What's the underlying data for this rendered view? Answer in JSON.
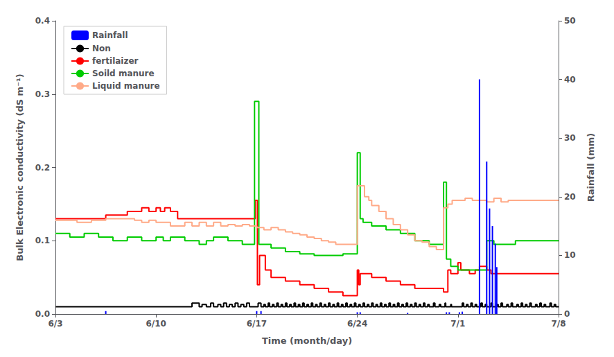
{
  "chart_data": {
    "type": "line",
    "xlabel": "Time (month/day)",
    "ylabel": "Bulk Electronic conductivity (dS m⁻¹)",
    "y2label": "Rainfall (mm)",
    "xlim": [
      0,
      35
    ],
    "xticks": [
      {
        "value": 0,
        "label": "6/3"
      },
      {
        "value": 7,
        "label": "6/10"
      },
      {
        "value": 14,
        "label": "6/17"
      },
      {
        "value": 21,
        "label": "6/24"
      },
      {
        "value": 28,
        "label": "7/1"
      },
      {
        "value": 35,
        "label": "7/8"
      }
    ],
    "ylim": [
      0,
      0.4
    ],
    "yticks": [
      {
        "value": 0,
        "label": "0.0"
      },
      0.1,
      0.2,
      0.3,
      0.4
    ],
    "y2lim": [
      0,
      50
    ],
    "y2ticks": [
      0,
      10,
      20,
      30,
      40,
      50
    ],
    "grid": false,
    "legend": "upper left",
    "series": [
      {
        "name": "Rainfall",
        "type": "bar",
        "axis": "y2",
        "color": "#0000ff",
        "x": [
          3.5,
          14.0,
          14.3,
          21.0,
          21.2,
          24.5,
          27.2,
          27.4,
          28.1,
          28.3,
          29.5,
          30.0,
          30.2,
          30.4,
          30.6,
          30.7
        ],
        "values": [
          0.5,
          0.5,
          0.5,
          0.3,
          0.3,
          0.2,
          0.3,
          0.3,
          0.3,
          0.4,
          40.0,
          26.0,
          18.0,
          15.0,
          12.0,
          8.0
        ]
      },
      {
        "name": "Non",
        "type": "line",
        "line_style": "step",
        "color": "#000000",
        "x": [
          0,
          9.5,
          10.0,
          10.2,
          10.5,
          10.8,
          11.0,
          11.3,
          11.5,
          11.7,
          11.9,
          12.1,
          12.3,
          12.5,
          12.7,
          12.9,
          13.1,
          13.3,
          13.5,
          14.1,
          14.3,
          14.5,
          14.6,
          14.8,
          14.9,
          15.1,
          15.2,
          15.4,
          15.5,
          15.7,
          15.8,
          16.0,
          16.1,
          16.3,
          16.4,
          16.6,
          16.7,
          16.9,
          17.0,
          17.2,
          17.3,
          17.5,
          17.6,
          17.8,
          17.9,
          18.1,
          18.2,
          18.4,
          18.5,
          18.7,
          18.8,
          19.0,
          19.1,
          19.3,
          19.4,
          19.6,
          19.7,
          19.9,
          20.0,
          20.2,
          20.3,
          20.5,
          20.6,
          20.8,
          20.9,
          21.1,
          21.2,
          21.4,
          21.5,
          21.7,
          21.8,
          22.0,
          22.1,
          22.3,
          22.4,
          22.6,
          22.7,
          22.9,
          23.0,
          23.2,
          23.3,
          23.5,
          23.6,
          23.8,
          23.9,
          24.1,
          24.2,
          24.4,
          24.5,
          24.7,
          24.8,
          25.0,
          25.1,
          25.3,
          25.4,
          25.6,
          25.7,
          25.9,
          26.0,
          26.3,
          26.4,
          26.7,
          26.8,
          27.1,
          27.15,
          27.5,
          27.55,
          28.3,
          28.4,
          28.6,
          28.7,
          28.9,
          29.0,
          29.2,
          29.3,
          29.6,
          29.7,
          29.9,
          30.0,
          30.3,
          30.4,
          30.7,
          30.8,
          31.0,
          31.1,
          31.4,
          31.5,
          31.7,
          31.8,
          32.1,
          32.2,
          32.4,
          32.5,
          32.7,
          32.8,
          33.0,
          33.1,
          33.4,
          33.5,
          33.7,
          33.8,
          34.0,
          34.1,
          34.4,
          34.5,
          34.7,
          34.8,
          35
        ],
        "values": [
          0.01,
          0.015,
          0.01,
          0.013,
          0.01,
          0.015,
          0.01,
          0.013,
          0.01,
          0.015,
          0.01,
          0.013,
          0.01,
          0.015,
          0.01,
          0.013,
          0.01,
          0.015,
          0.01,
          0.015,
          0.01,
          0.013,
          0.01,
          0.015,
          0.01,
          0.013,
          0.01,
          0.015,
          0.01,
          0.013,
          0.01,
          0.015,
          0.01,
          0.013,
          0.01,
          0.015,
          0.01,
          0.013,
          0.01,
          0.015,
          0.01,
          0.013,
          0.01,
          0.015,
          0.01,
          0.013,
          0.01,
          0.015,
          0.01,
          0.013,
          0.01,
          0.015,
          0.01,
          0.013,
          0.01,
          0.015,
          0.01,
          0.013,
          0.01,
          0.015,
          0.01,
          0.013,
          0.01,
          0.015,
          0.01,
          0.013,
          0.01,
          0.015,
          0.01,
          0.013,
          0.01,
          0.015,
          0.01,
          0.013,
          0.01,
          0.015,
          0.01,
          0.013,
          0.01,
          0.015,
          0.01,
          0.013,
          0.01,
          0.015,
          0.01,
          0.013,
          0.01,
          0.015,
          0.01,
          0.013,
          0.01,
          0.015,
          0.01,
          0.013,
          0.01,
          0.015,
          0.01,
          0.013,
          0.01,
          0.015,
          0.01,
          0.013,
          0.01,
          0.015,
          0.01,
          0.013,
          0.01,
          0.015,
          0.01,
          0.013,
          0.01,
          0.015,
          0.01,
          0.013,
          0.01,
          0.015,
          0.01,
          0.013,
          0.01,
          0.015,
          0.01,
          0.013,
          0.01,
          0.015,
          0.01,
          0.013,
          0.01,
          0.015,
          0.01,
          0.013,
          0.01,
          0.015,
          0.01,
          0.013,
          0.01,
          0.015,
          0.01,
          0.013,
          0.01,
          0.015,
          0.01,
          0.013,
          0.01,
          0.015,
          0.01,
          0.013,
          0.01,
          0.01
        ]
      },
      {
        "name": "fertilaizer",
        "type": "line",
        "line_style": "step",
        "color": "#ff0000",
        "x": [
          0.0,
          3.5,
          5.0,
          6.0,
          6.5,
          7.0,
          7.3,
          7.6,
          8.0,
          8.5,
          13.5,
          13.9,
          14.05,
          14.2,
          14.6,
          15.0,
          16.0,
          17.0,
          18.0,
          19.0,
          20.0,
          21.0,
          21.1,
          21.2,
          22.0,
          23.0,
          24.0,
          25.0,
          27.0,
          27.3,
          27.5,
          28.0,
          28.2,
          28.8,
          29.2,
          29.5,
          30.0,
          30.3,
          31.0,
          35.0
        ],
        "values": [
          0.13,
          0.135,
          0.14,
          0.145,
          0.14,
          0.145,
          0.14,
          0.145,
          0.14,
          0.13,
          0.13,
          0.155,
          0.04,
          0.08,
          0.06,
          0.05,
          0.045,
          0.04,
          0.035,
          0.03,
          0.025,
          0.06,
          0.04,
          0.055,
          0.05,
          0.045,
          0.04,
          0.035,
          0.03,
          0.06,
          0.055,
          0.07,
          0.06,
          0.055,
          0.06,
          0.065,
          0.06,
          0.055,
          0.055,
          0.055
        ]
      },
      {
        "name": "Soild manure",
        "type": "line",
        "line_style": "step",
        "color": "#00cc00",
        "x": [
          0.0,
          1.0,
          2.0,
          3.0,
          4.0,
          5.0,
          6.0,
          7.0,
          7.5,
          8.0,
          9.0,
          10.0,
          10.5,
          11.0,
          12.0,
          13.0,
          13.85,
          14.0,
          14.15,
          14.3,
          14.5,
          15.0,
          16.0,
          17.0,
          18.0,
          19.0,
          20.0,
          20.5,
          21.0,
          21.05,
          21.2,
          21.4,
          22.0,
          23.0,
          24.0,
          25.0,
          26.0,
          27.0,
          27.05,
          27.2,
          27.5,
          28.0,
          29.0,
          30.0,
          30.5,
          32.0,
          35.0
        ],
        "values": [
          0.11,
          0.105,
          0.11,
          0.105,
          0.1,
          0.105,
          0.1,
          0.105,
          0.1,
          0.105,
          0.1,
          0.095,
          0.1,
          0.105,
          0.1,
          0.095,
          0.29,
          0.29,
          0.095,
          0.095,
          0.095,
          0.09,
          0.085,
          0.082,
          0.08,
          0.08,
          0.082,
          0.082,
          0.22,
          0.22,
          0.13,
          0.125,
          0.12,
          0.115,
          0.11,
          0.1,
          0.095,
          0.18,
          0.18,
          0.075,
          0.065,
          0.06,
          0.06,
          0.1,
          0.095,
          0.1,
          0.1
        ]
      },
      {
        "name": "Liquid manure",
        "type": "line",
        "line_style": "step",
        "color": "#ffaa88",
        "x": [
          0.0,
          1.5,
          2.5,
          3.5,
          4.5,
          5.5,
          6.0,
          6.5,
          7.0,
          8.0,
          9.0,
          9.5,
          10.0,
          10.5,
          11.0,
          11.5,
          12.0,
          12.5,
          13.0,
          13.5,
          14.0,
          14.5,
          15.0,
          15.5,
          16.0,
          16.5,
          17.0,
          17.5,
          18.0,
          18.5,
          19.0,
          19.5,
          20.0,
          20.5,
          21.0,
          21.2,
          21.5,
          21.8,
          22.0,
          22.5,
          23.0,
          23.5,
          24.0,
          24.5,
          25.0,
          25.5,
          26.0,
          26.5,
          27.0,
          27.3,
          27.6,
          28.0,
          28.5,
          29.0,
          29.5,
          30.0,
          30.5,
          31.0,
          31.5,
          32.0,
          35.0
        ],
        "values": [
          0.128,
          0.125,
          0.128,
          0.13,
          0.13,
          0.128,
          0.125,
          0.128,
          0.125,
          0.12,
          0.125,
          0.12,
          0.125,
          0.12,
          0.125,
          0.12,
          0.122,
          0.12,
          0.122,
          0.12,
          0.118,
          0.115,
          0.118,
          0.115,
          0.112,
          0.11,
          0.108,
          0.105,
          0.103,
          0.1,
          0.098,
          0.095,
          0.095,
          0.095,
          0.175,
          0.175,
          0.16,
          0.155,
          0.148,
          0.14,
          0.13,
          0.122,
          0.115,
          0.108,
          0.1,
          0.098,
          0.092,
          0.088,
          0.145,
          0.15,
          0.155,
          0.155,
          0.158,
          0.155,
          0.155,
          0.153,
          0.158,
          0.153,
          0.155,
          0.155,
          0.155
        ]
      }
    ]
  }
}
